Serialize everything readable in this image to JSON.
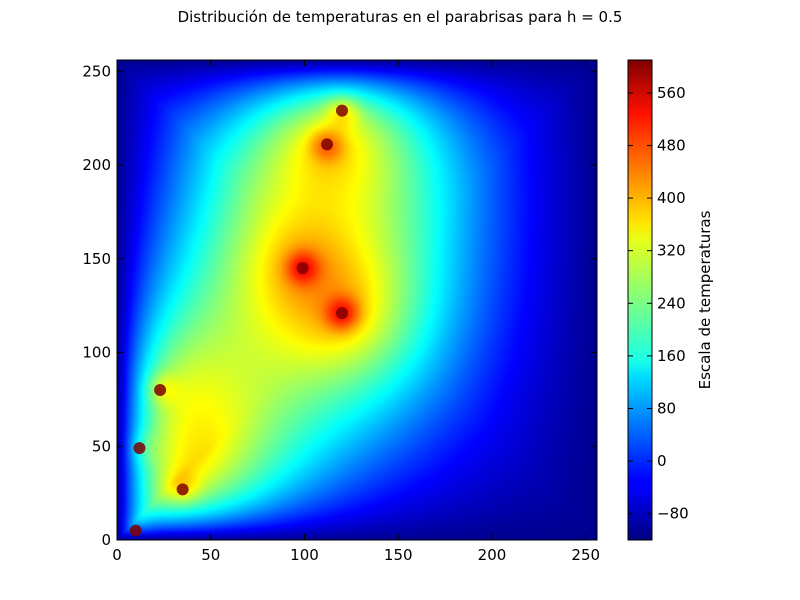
{
  "chart_data": {
    "type": "heatmap",
    "title": "Distribución de temperaturas en el parabrisas para h = 0.5",
    "xlabel": "",
    "ylabel": "",
    "colormap": "jet",
    "xlim": [
      0,
      256
    ],
    "ylim": [
      0,
      256
    ],
    "x_ticks": [
      0,
      50,
      100,
      150,
      200,
      250
    ],
    "y_ticks": [
      0,
      50,
      100,
      150,
      200,
      250
    ],
    "colorbar": {
      "label": "Escala de temperaturas",
      "range": [
        -120,
        610
      ],
      "ticks": [
        -80,
        0,
        80,
        160,
        240,
        320,
        400,
        480,
        560
      ]
    },
    "background_value": -110,
    "hot_spots": [
      {
        "x": 10,
        "y": 5,
        "value": 600
      },
      {
        "x": 12,
        "y": 49,
        "value": 600
      },
      {
        "x": 23,
        "y": 80,
        "value": 600
      },
      {
        "x": 35,
        "y": 27,
        "value": 600
      },
      {
        "x": 99,
        "y": 145,
        "value": 600
      },
      {
        "x": 120,
        "y": 121,
        "value": 600
      },
      {
        "x": 112,
        "y": 211,
        "value": 600
      },
      {
        "x": 120,
        "y": 229,
        "value": 600
      }
    ]
  }
}
